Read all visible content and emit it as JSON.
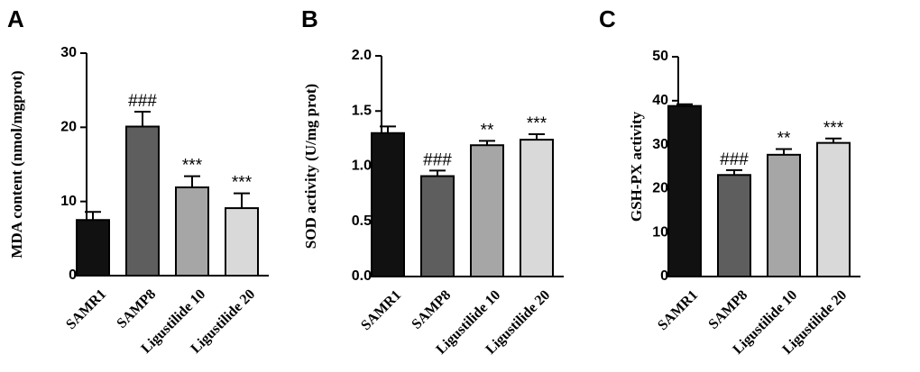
{
  "chart_data": [
    {
      "type": "bar",
      "panel": "A",
      "title": "",
      "xlabel": "",
      "ylabel": "MDA content (nmol/mgprot)",
      "ylim": [
        0,
        30
      ],
      "yticks": [
        "0",
        "10",
        "20",
        "30"
      ],
      "categories": [
        "SAMR1",
        "SAMP8",
        "Ligustilide 10",
        "Ligustilide 20"
      ],
      "values": [
        7.5,
        20.1,
        11.9,
        9.1
      ],
      "errors": [
        1.1,
        2.0,
        1.5,
        2.0
      ],
      "annotations": [
        "",
        "###",
        "***",
        "***"
      ],
      "colors": [
        "#111111",
        "#5e5e5e",
        "#a6a6a6",
        "#d9d9d9"
      ],
      "grid": false,
      "legend": "none"
    },
    {
      "type": "bar",
      "panel": "B",
      "title": "",
      "xlabel": "",
      "ylabel": "SOD activity (U/mg prot)",
      "ylim": [
        0,
        2.0
      ],
      "yticks": [
        "0.0",
        "0.5",
        "1.0",
        "1.5",
        "2.0"
      ],
      "categories": [
        "SAMR1",
        "SAMP8",
        "Ligustilide 10",
        "Ligustilide 20"
      ],
      "values": [
        1.3,
        0.91,
        1.19,
        1.24
      ],
      "errors": [
        0.06,
        0.05,
        0.04,
        0.05
      ],
      "annotations": [
        "",
        "###",
        "**",
        "***"
      ],
      "colors": [
        "#111111",
        "#5e5e5e",
        "#a6a6a6",
        "#d9d9d9"
      ],
      "grid": false,
      "legend": "none"
    },
    {
      "type": "bar",
      "panel": "C",
      "title": "",
      "xlabel": "",
      "ylabel": "GSH-PX activity",
      "ylim": [
        0,
        50
      ],
      "yticks": [
        "0",
        "10",
        "20",
        "30",
        "40",
        "50"
      ],
      "categories": [
        "SAMR1",
        "SAMP8",
        "Ligustilide 10",
        "Ligustilide 20"
      ],
      "values": [
        38.8,
        23.1,
        27.7,
        30.4
      ],
      "errors": [
        0.4,
        1.1,
        1.3,
        1.0
      ],
      "annotations": [
        "",
        "###",
        "**",
        "***"
      ],
      "colors": [
        "#111111",
        "#5e5e5e",
        "#a6a6a6",
        "#d9d9d9"
      ],
      "grid": false,
      "legend": "none"
    }
  ]
}
